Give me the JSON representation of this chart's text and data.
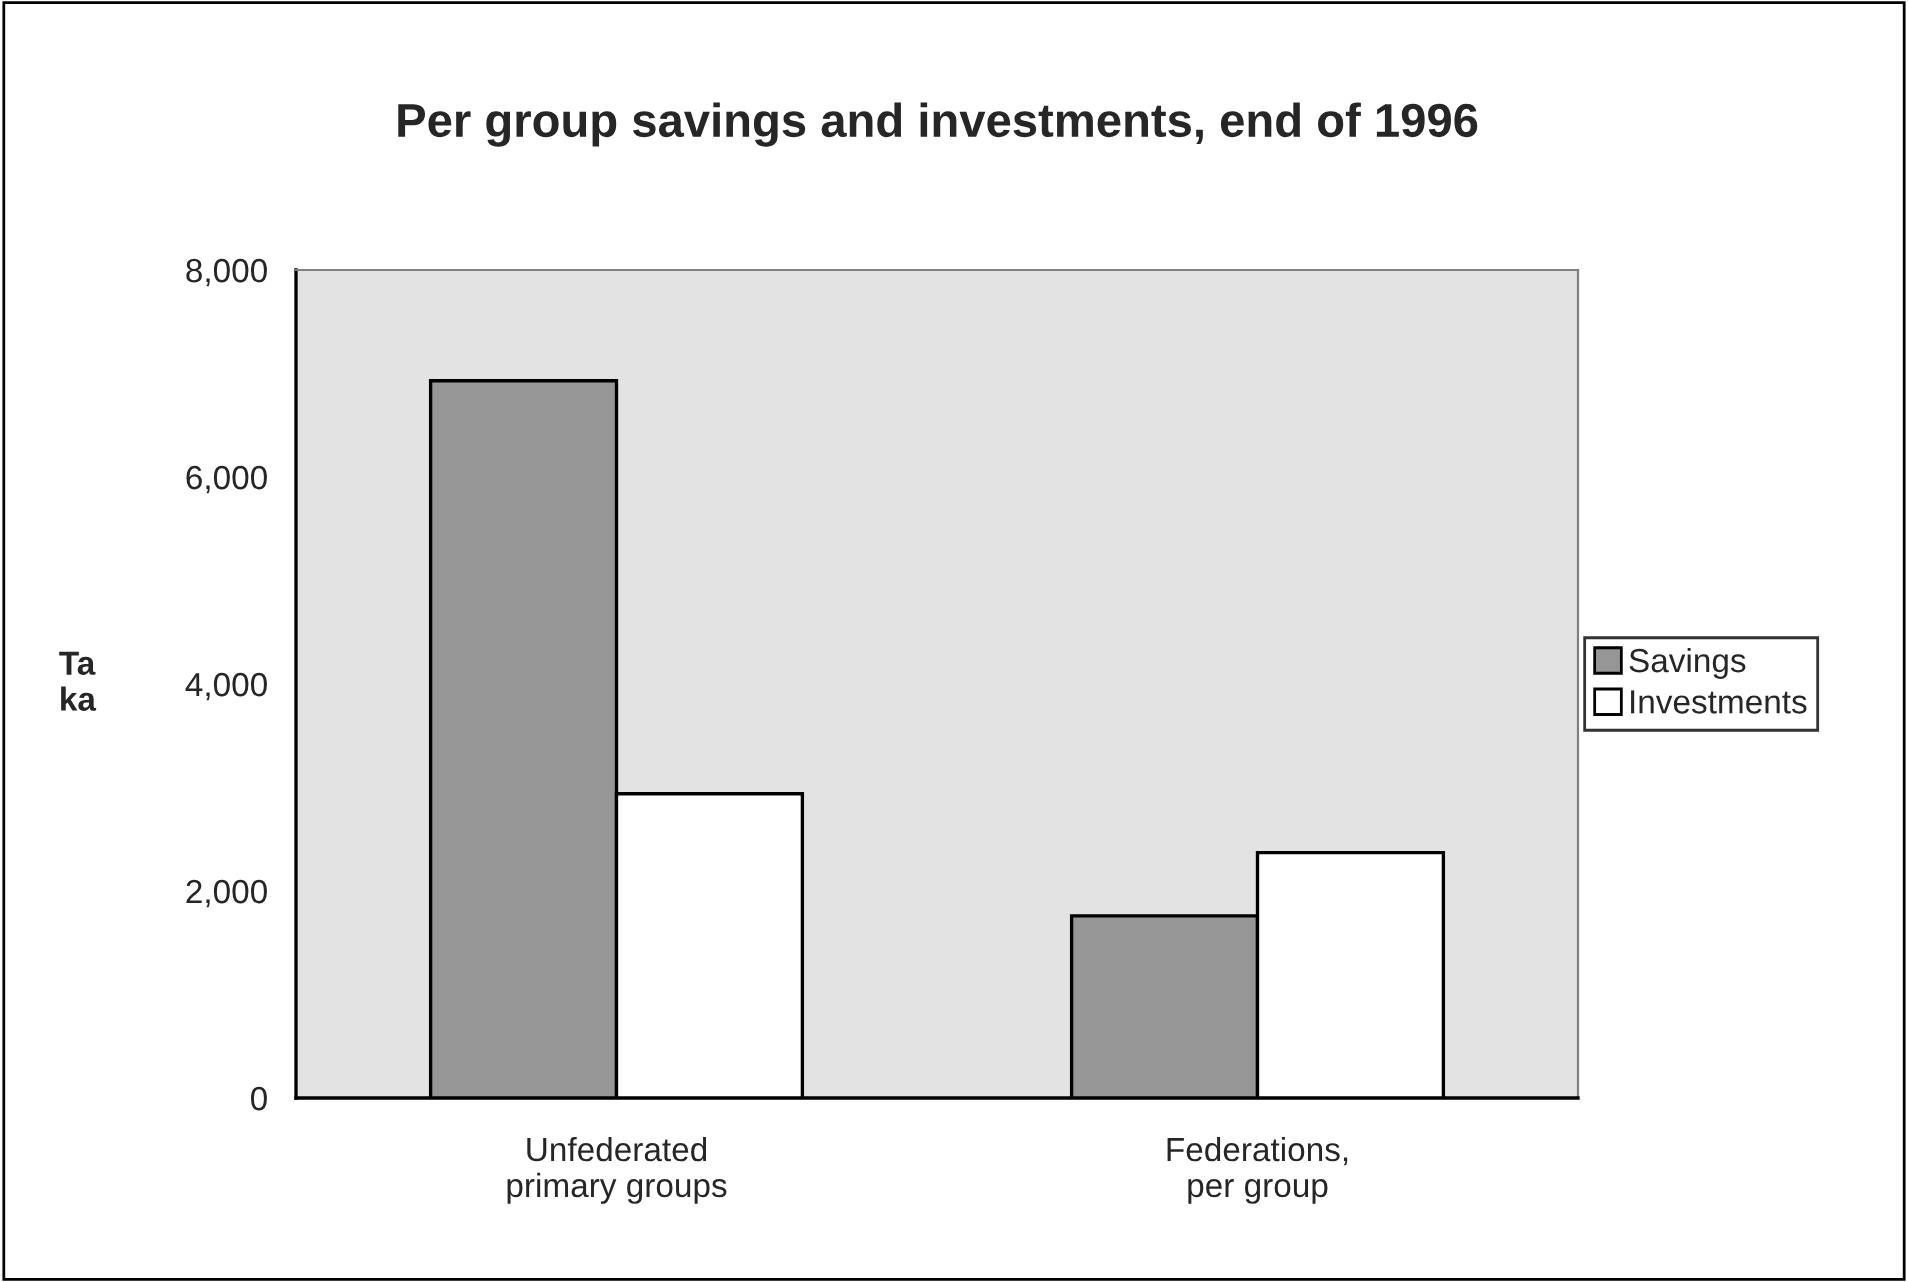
{
  "chart_data": {
    "type": "bar",
    "title": "Per group savings and investments, end of 1996",
    "ylabel": "Ta\nka",
    "categories": [
      "Unfederated\nprimary groups",
      "Federations,\nper group"
    ],
    "series": [
      {
        "name": "Savings",
        "color": "#969696",
        "values": [
          6930,
          1760
        ]
      },
      {
        "name": "Investments",
        "color": "#ffffff",
        "values": [
          2940,
          2370
        ]
      }
    ],
    "ylim": [
      0,
      8000
    ],
    "yticks": [
      {
        "value": 0,
        "label": "0"
      },
      {
        "value": 2000,
        "label": "2,000"
      },
      {
        "value": 4000,
        "label": "4,000"
      },
      {
        "value": 6000,
        "label": "6,000"
      },
      {
        "value": 8000,
        "label": "8,000"
      }
    ],
    "grid": false,
    "legend": "right"
  }
}
